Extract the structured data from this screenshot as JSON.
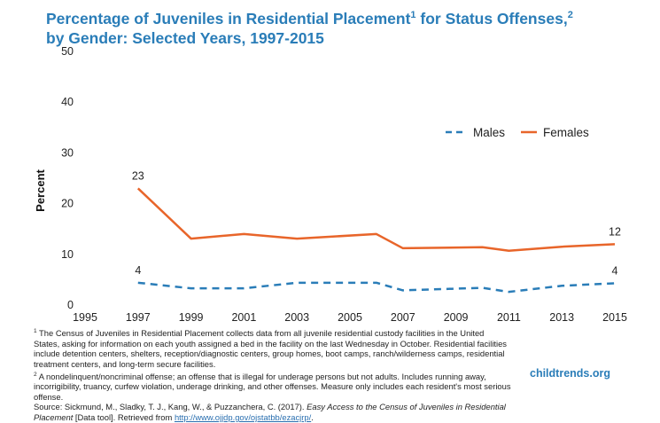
{
  "title": {
    "line1": "Percentage of Juveniles in Residential Placement",
    "sup1": "1",
    "line1b": " for Status Offenses,",
    "sup2": "2",
    "line2": "by Gender: Selected Years, 1997-2015"
  },
  "chart_data": {
    "type": "line",
    "ylabel": "Percent",
    "xlabel": "",
    "ylim": [
      0,
      50
    ],
    "xlim": [
      1995,
      2015
    ],
    "yticks": [
      "0",
      "10",
      "20",
      "30",
      "40",
      "50"
    ],
    "xticks": [
      "1995",
      "1997",
      "1999",
      "2001",
      "2003",
      "2005",
      "2007",
      "2009",
      "2011",
      "2013",
      "2015"
    ],
    "grid": false,
    "legend": "right",
    "x": [
      1997,
      1999,
      2001,
      2003,
      2006,
      2007,
      2010,
      2011,
      2013,
      2015
    ],
    "series": [
      {
        "name": "Males",
        "color": "#2a7db8",
        "style": "dashed",
        "values": [
          4.4,
          3.3,
          3.3,
          4.4,
          4.4,
          2.9,
          3.4,
          2.6,
          3.8,
          4.3
        ],
        "labels": {
          "first": "4",
          "last": "4"
        }
      },
      {
        "name": "Females",
        "color": "#e8652a",
        "style": "solid",
        "values": [
          23,
          13.1,
          14,
          13.1,
          14,
          11.2,
          11.4,
          10.7,
          11.5,
          12
        ],
        "labels": {
          "first": "23",
          "last": "12"
        }
      }
    ]
  },
  "notes": {
    "n1_sup": "1",
    "n1": " The Census of Juveniles in Residential Placement collects data from all juvenile residential custody facilities in the United States, asking for information on each youth assigned a bed in the facility on the last Wednesday in October. Residential facilities include detention centers, shelters, reception/diagnostic centers, group homes, boot camps, ranch/wilderness camps, residential treatment centers, and long-term secure facilities.",
    "n2_sup": "2",
    "n2": " A nondelinquent/noncriminal offense; an offense that is illegal for underage persons but not adults. Includes running away, incorrigibility, truancy, curfew violation, underage drinking, and other offenses. Measure only includes each resident's most serious offense.",
    "source_prefix": "Source: Sickmund, M., Sladky, T. J., Kang, W., & Puzzanchera, C. (2017). ",
    "source_title": "Easy Access to the Census of Juveniles in Residential Placement",
    "source_mid": " [Data tool]. Retrieved from ",
    "source_link": "http://www.ojjdp.gov/ojstatbb/ezacjrp/",
    "source_end": "."
  },
  "brand": "childtrends.org"
}
